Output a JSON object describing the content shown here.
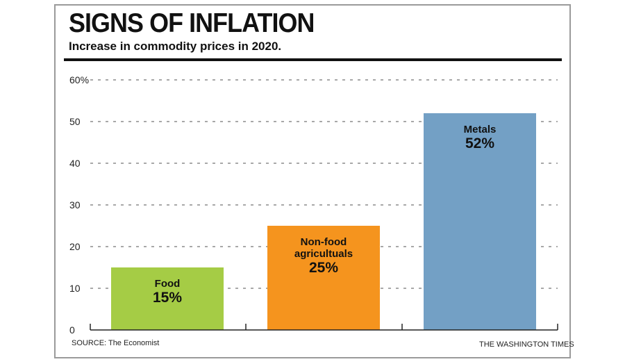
{
  "chart_data": {
    "type": "bar",
    "title": "SIGNS OF INFLATION",
    "subtitle": "Increase in commodity prices in 2020.",
    "categories": [
      [
        "Food"
      ],
      [
        "Non-food",
        "agricultuals"
      ],
      [
        "Metals"
      ]
    ],
    "values": [
      15,
      25,
      52
    ],
    "value_labels": [
      "15%",
      "25%",
      "52%"
    ],
    "bar_colors": [
      "#a5cc45",
      "#f5941e",
      "#73a0c5"
    ],
    "ylim": [
      0,
      60
    ],
    "yticks": [
      {
        "value": 0,
        "label": "0"
      },
      {
        "value": 10,
        "label": "10"
      },
      {
        "value": 20,
        "label": "20"
      },
      {
        "value": 30,
        "label": "30"
      },
      {
        "value": 40,
        "label": "40"
      },
      {
        "value": 50,
        "label": "50"
      },
      {
        "value": 60,
        "label": "60%"
      }
    ],
    "grid": true,
    "source": "SOURCE: The Economist",
    "credit": "THE WASHINGTON TIMES"
  }
}
